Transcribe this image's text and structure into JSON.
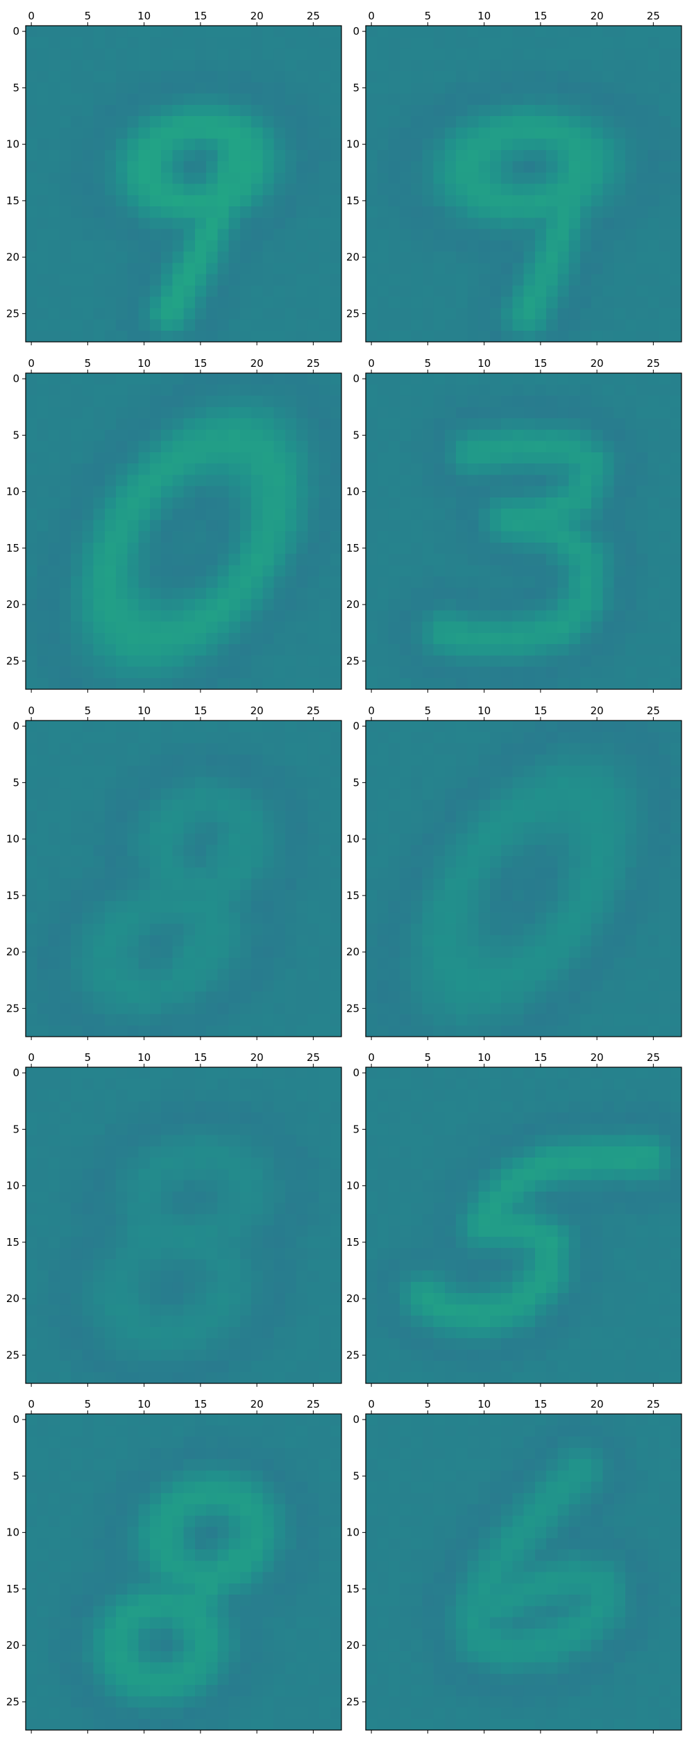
{
  "chart_data": {
    "type": "heatmap",
    "grid": {
      "rows": 5,
      "cols": 2
    },
    "image_size": [
      28,
      28
    ],
    "colormap": "viridis",
    "color_range": [
      0,
      1
    ],
    "background_value": 0.44,
    "x_axis": {
      "position": "top",
      "xlim": [
        -0.5,
        27.5
      ],
      "ticks": [
        0,
        5,
        10,
        15,
        20,
        25
      ]
    },
    "y_axis": {
      "position": "left",
      "ylim": [
        27.5,
        -0.5
      ],
      "ticks": [
        0,
        5,
        10,
        15,
        20,
        25
      ]
    },
    "panels": [
      {
        "row": 0,
        "col": 0,
        "digit_shape": "9",
        "peak_value": 0.58,
        "strokes": [
          {
            "type": "ellipse",
            "cx": 14.8,
            "cy": 11.8,
            "rx": 4.6,
            "ry": 3.4,
            "angle": -8,
            "width": 2.5,
            "w": 1.0
          },
          {
            "type": "line",
            "pts": [
              [
                18.6,
                9.2
              ],
              [
                16.8,
                15.5
              ],
              [
                14.8,
                20.0
              ],
              [
                12.3,
                24.8
              ]
            ],
            "width": 2.3,
            "w": 1.0
          }
        ]
      },
      {
        "row": 0,
        "col": 1,
        "digit_shape": "9",
        "peak_value": 0.56,
        "strokes": [
          {
            "type": "ellipse",
            "cx": 13.8,
            "cy": 12.0,
            "rx": 5.2,
            "ry": 3.3,
            "angle": -5,
            "width": 2.5,
            "w": 1.0
          },
          {
            "type": "line",
            "pts": [
              [
                18.5,
                10.0
              ],
              [
                17.2,
                16.5
              ],
              [
                15.5,
                21.5
              ],
              [
                13.8,
                25.0
              ]
            ],
            "width": 2.3,
            "w": 1.0
          }
        ]
      },
      {
        "row": 1,
        "col": 0,
        "digit_shape": "0",
        "peak_value": 0.56,
        "strokes": [
          {
            "type": "ellipse",
            "cx": 14.2,
            "cy": 14.3,
            "rx": 9.8,
            "ry": 6.0,
            "angle": -55,
            "width": 2.7,
            "w": 1.0
          }
        ]
      },
      {
        "row": 1,
        "col": 1,
        "digit_shape": "3",
        "peak_value": 0.55,
        "strokes": [
          {
            "type": "line",
            "pts": [
              [
                9.0,
                6.5
              ],
              [
                13.0,
                6.0
              ],
              [
                17.5,
                6.2
              ],
              [
                19.5,
                7.5
              ],
              [
                18.5,
                10.5
              ],
              [
                15.5,
                12.0
              ],
              [
                12.0,
                12.5
              ]
            ],
            "width": 2.3,
            "w": 1.0
          },
          {
            "type": "line",
            "pts": [
              [
                12.0,
                12.5
              ],
              [
                16.5,
                13.5
              ],
              [
                19.2,
                16.0
              ],
              [
                19.0,
                19.5
              ],
              [
                17.0,
                22.0
              ],
              [
                13.0,
                23.0
              ],
              [
                9.0,
                23.0
              ],
              [
                6.5,
                22.5
              ]
            ],
            "width": 2.3,
            "w": 1.0
          }
        ]
      },
      {
        "row": 2,
        "col": 0,
        "digit_shape": "8",
        "peak_value": 0.5,
        "strokes": [
          {
            "type": "ellipse",
            "cx": 15.5,
            "cy": 10.5,
            "rx": 4.0,
            "ry": 3.6,
            "angle": -20,
            "width": 2.6,
            "w": 0.8
          },
          {
            "type": "ellipse",
            "cx": 11.5,
            "cy": 19.5,
            "rx": 5.0,
            "ry": 3.6,
            "angle": -25,
            "width": 2.6,
            "w": 0.8
          },
          {
            "type": "line",
            "pts": [
              [
                19.0,
                8.5
              ],
              [
                17.0,
                13.0
              ],
              [
                15.5,
                17.5
              ],
              [
                14.0,
                21.0
              ]
            ],
            "width": 2.4,
            "w": 0.8
          }
        ]
      },
      {
        "row": 2,
        "col": 1,
        "digit_shape": "0",
        "peak_value": 0.51,
        "strokes": [
          {
            "type": "ellipse",
            "cx": 13.5,
            "cy": 14.5,
            "rx": 9.5,
            "ry": 5.2,
            "angle": -55,
            "width": 2.7,
            "w": 0.8
          }
        ]
      },
      {
        "row": 3,
        "col": 0,
        "digit_shape": "8",
        "peak_value": 0.49,
        "strokes": [
          {
            "type": "ellipse",
            "cx": 14.5,
            "cy": 11.0,
            "rx": 4.5,
            "ry": 3.5,
            "angle": -15,
            "width": 2.6,
            "w": 0.7
          },
          {
            "type": "ellipse",
            "cx": 12.5,
            "cy": 19.0,
            "rx": 5.0,
            "ry": 4.0,
            "angle": -20,
            "width": 2.6,
            "w": 0.7
          },
          {
            "type": "line",
            "pts": [
              [
                9.5,
                14.5
              ],
              [
                14.0,
                14.5
              ]
            ],
            "width": 2.2,
            "w": 0.7
          }
        ]
      },
      {
        "row": 3,
        "col": 1,
        "digit_shape": "5",
        "peak_value": 0.56,
        "strokes": [
          {
            "type": "line",
            "pts": [
              [
                24.5,
                7.5
              ],
              [
                20.0,
                7.5
              ],
              [
                16.0,
                8.0
              ],
              [
                13.0,
                9.5
              ],
              [
                11.0,
                11.5
              ],
              [
                10.0,
                13.5
              ]
            ],
            "width": 2.3,
            "w": 1.0
          },
          {
            "type": "line",
            "pts": [
              [
                10.0,
                13.5
              ],
              [
                13.5,
                13.8
              ],
              [
                15.8,
                15.0
              ],
              [
                15.5,
                18.0
              ],
              [
                13.0,
                20.5
              ],
              [
                9.5,
                21.5
              ],
              [
                6.5,
                21.0
              ],
              [
                4.8,
                19.8
              ]
            ],
            "width": 2.4,
            "w": 1.0
          }
        ]
      },
      {
        "row": 4,
        "col": 0,
        "digit_shape": "8",
        "peak_value": 0.55,
        "strokes": [
          {
            "type": "ellipse",
            "cx": 15.8,
            "cy": 10.2,
            "rx": 4.2,
            "ry": 3.6,
            "angle": -15,
            "width": 2.5,
            "w": 1.0
          },
          {
            "type": "ellipse",
            "cx": 11.5,
            "cy": 19.8,
            "rx": 3.9,
            "ry": 3.4,
            "angle": -15,
            "width": 2.5,
            "w": 1.0
          },
          {
            "type": "line",
            "pts": [
              [
                18.5,
                12.0
              ],
              [
                15.5,
                15.0
              ],
              [
                13.5,
                17.0
              ]
            ],
            "width": 2.4,
            "w": 1.0
          }
        ]
      },
      {
        "row": 4,
        "col": 1,
        "digit_shape": "6",
        "peak_value": 0.52,
        "strokes": [
          {
            "type": "line",
            "pts": [
              [
                18.5,
                4.5
              ],
              [
                16.0,
                7.0
              ],
              [
                13.0,
                10.5
              ],
              [
                10.5,
                14.0
              ],
              [
                9.0,
                17.5
              ],
              [
                9.5,
                19.5
              ],
              [
                12.0,
                20.5
              ],
              [
                15.5,
                20.0
              ],
              [
                18.5,
                18.5
              ],
              [
                20.5,
                16.5
              ],
              [
                20.5,
                14.5
              ],
              [
                18.0,
                14.0
              ],
              [
                14.0,
                15.0
              ],
              [
                11.0,
                16.5
              ]
            ],
            "width": 2.4,
            "w": 1.0
          }
        ]
      }
    ]
  }
}
